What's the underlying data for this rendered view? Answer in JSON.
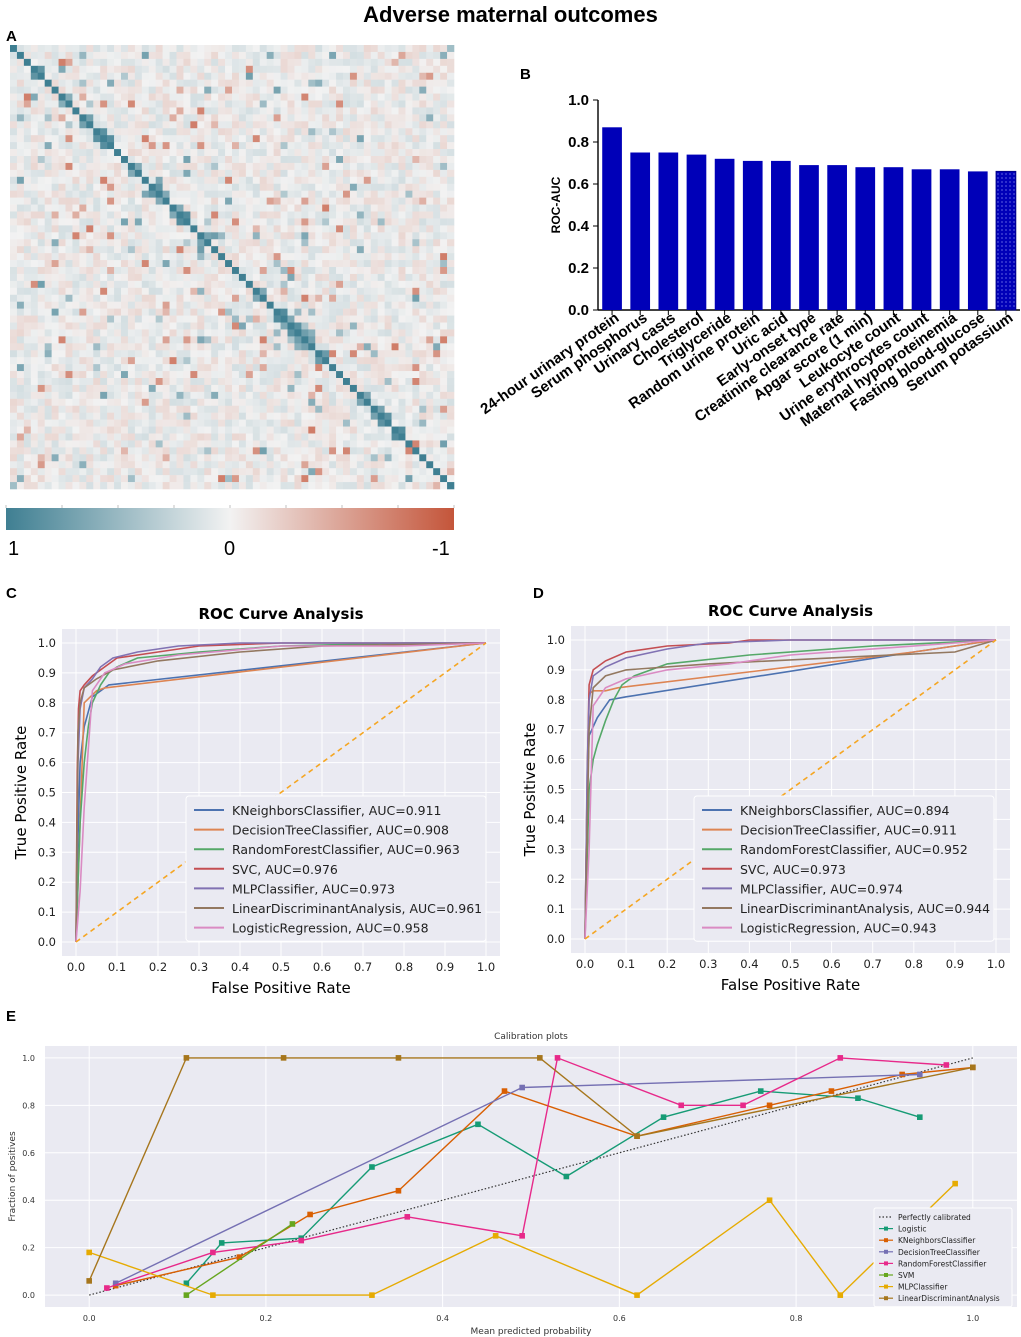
{
  "title": "Adverse maternal outcomes",
  "panel_letters": {
    "a": "A",
    "b": "B",
    "c": "C",
    "d": "D",
    "e": "E"
  },
  "chart_data": [
    {
      "panel": "A",
      "type": "heatmap",
      "description_free": true,
      "colorbar": {
        "min_label": "1",
        "mid_label": "0",
        "max_label": "-1",
        "low_color": "#3f7f92",
        "mid_color": "#f2f2f2",
        "high_color": "#c4553a"
      },
      "matrix_size": 64,
      "diagonal_value": 1
    },
    {
      "panel": "B",
      "type": "bar",
      "title": "",
      "ylabel": "ROC-AUC",
      "ylim": [
        0.0,
        1.0
      ],
      "yticks": [
        "0.0",
        "0.2",
        "0.4",
        "0.6",
        "0.8",
        "1.0"
      ],
      "bar_color": "#0000b8",
      "categories": [
        "24-hour urinary protein",
        "Serum phosphorus",
        "Urinary casts",
        "Cholesterol",
        "Triglyceride",
        "Random urine protein",
        "Uric acid",
        "Early-onset type",
        "Creatinine clearance rate",
        "Apgar score (1 min)",
        "Leukocyte count",
        "Urine erythrocytes count",
        "Maternal hypoproteinemia",
        "Fasting blood-glucose",
        "Serum potassium"
      ],
      "values": [
        0.87,
        0.75,
        0.75,
        0.74,
        0.72,
        0.71,
        0.71,
        0.69,
        0.69,
        0.68,
        0.68,
        0.67,
        0.67,
        0.66,
        0.66
      ]
    },
    {
      "panel": "C",
      "type": "line",
      "title": "ROC Curve Analysis",
      "xlabel": "False Positive Rate",
      "ylabel": "True Positive Rate",
      "xlim": [
        0,
        1
      ],
      "ylim": [
        0,
        1
      ],
      "ticks": [
        "0.0",
        "0.1",
        "0.2",
        "0.3",
        "0.4",
        "0.5",
        "0.6",
        "0.7",
        "0.8",
        "0.9",
        "1.0"
      ],
      "series": [
        {
          "name": "KNeighborsClassifier, AUC=0.911",
          "color": "#4c72b0",
          "x": [
            0,
            0.005,
            0.01,
            0.02,
            0.04,
            0.08,
            1.0
          ],
          "y": [
            0,
            0.35,
            0.6,
            0.72,
            0.82,
            0.86,
            1.0
          ]
        },
        {
          "name": "DecisionTreeClassifier, AUC=0.908",
          "color": "#dd8452",
          "x": [
            0,
            0.02,
            0.05,
            0.07,
            1.0
          ],
          "y": [
            0,
            0.8,
            0.84,
            0.85,
            1.0
          ]
        },
        {
          "name": "RandomForestClassifier, AUC=0.963",
          "color": "#55a868",
          "x": [
            0,
            0.01,
            0.02,
            0.03,
            0.04,
            0.06,
            0.08,
            0.1,
            0.15,
            0.3,
            0.5,
            0.8,
            1.0
          ],
          "y": [
            0,
            0.4,
            0.6,
            0.72,
            0.8,
            0.86,
            0.9,
            0.92,
            0.95,
            0.97,
            0.99,
            1.0,
            1.0
          ]
        },
        {
          "name": "SVC, AUC=0.976",
          "color": "#c44e52",
          "x": [
            0,
            0.003,
            0.006,
            0.01,
            0.02,
            0.04,
            0.07,
            0.1,
            0.2,
            0.3,
            0.5,
            1.0
          ],
          "y": [
            0,
            0.57,
            0.78,
            0.84,
            0.86,
            0.89,
            0.92,
            0.95,
            0.97,
            0.99,
            1.0,
            1.0
          ]
        },
        {
          "name": "MLPClassifier, AUC=0.973",
          "color": "#8172b3",
          "x": [
            0,
            0.005,
            0.01,
            0.02,
            0.04,
            0.06,
            0.09,
            0.15,
            0.25,
            0.4,
            1.0
          ],
          "y": [
            0,
            0.6,
            0.78,
            0.85,
            0.88,
            0.92,
            0.95,
            0.97,
            0.99,
            1.0,
            1.0
          ]
        },
        {
          "name": "LinearDiscriminantAnalysis, AUC=0.961",
          "color": "#937860",
          "x": [
            0,
            0.005,
            0.01,
            0.02,
            0.05,
            0.09,
            0.2,
            0.4,
            0.6,
            1.0
          ],
          "y": [
            0,
            0.7,
            0.8,
            0.85,
            0.88,
            0.91,
            0.94,
            0.97,
            0.99,
            1.0
          ]
        },
        {
          "name": "LogisticRegression, AUC=0.958",
          "color": "#da8bc3",
          "x": [
            0,
            0.01,
            0.02,
            0.04,
            0.07,
            0.12,
            0.25,
            0.5,
            0.8,
            1.0
          ],
          "y": [
            0,
            0.17,
            0.45,
            0.84,
            0.9,
            0.93,
            0.96,
            0.99,
            0.99,
            1.0
          ]
        },
        {
          "name": "chance",
          "color": "#f5a623",
          "dashed": true,
          "x": [
            0,
            1
          ],
          "y": [
            0,
            1
          ]
        }
      ]
    },
    {
      "panel": "D",
      "type": "line",
      "title": "ROC Curve Analysis",
      "xlabel": "False Positive Rate",
      "ylabel": "True Positive Rate",
      "xlim": [
        0,
        1
      ],
      "ylim": [
        0,
        1
      ],
      "ticks": [
        "0.0",
        "0.1",
        "0.2",
        "0.3",
        "0.4",
        "0.5",
        "0.6",
        "0.7",
        "0.8",
        "0.9",
        "1.0"
      ],
      "series": [
        {
          "name": "KNeighborsClassifier, AUC=0.894",
          "color": "#4c72b0",
          "x": [
            0,
            0.005,
            0.01,
            0.03,
            0.06,
            0.1,
            0.8,
            1.0
          ],
          "y": [
            0,
            0.48,
            0.68,
            0.74,
            0.8,
            0.81,
            0.96,
            1.0
          ]
        },
        {
          "name": "DecisionTreeClassifier, AUC=0.911",
          "color": "#dd8452",
          "x": [
            0,
            0.01,
            0.02,
            0.05,
            0.08,
            0.8,
            1.0
          ],
          "y": [
            0,
            0.82,
            0.83,
            0.83,
            0.84,
            0.96,
            1.0
          ]
        },
        {
          "name": "RandomForestClassifier, AUC=0.952",
          "color": "#55a868",
          "x": [
            0,
            0.01,
            0.02,
            0.03,
            0.05,
            0.07,
            0.09,
            0.12,
            0.2,
            0.4,
            0.7,
            1.0
          ],
          "y": [
            0,
            0.5,
            0.6,
            0.65,
            0.73,
            0.8,
            0.85,
            0.88,
            0.92,
            0.95,
            0.98,
            1.0
          ]
        },
        {
          "name": "SVC, AUC=0.973",
          "color": "#c44e52",
          "x": [
            0,
            0.003,
            0.006,
            0.01,
            0.02,
            0.05,
            0.1,
            0.2,
            0.35,
            0.4,
            1.0
          ],
          "y": [
            0,
            0.3,
            0.6,
            0.85,
            0.9,
            0.93,
            0.96,
            0.98,
            0.99,
            1.0,
            1.0
          ]
        },
        {
          "name": "MLPClassifier, AUC=0.974",
          "color": "#8172b3",
          "x": [
            0,
            0.005,
            0.01,
            0.02,
            0.05,
            0.1,
            0.2,
            0.3,
            0.5,
            1.0
          ],
          "y": [
            0,
            0.55,
            0.8,
            0.88,
            0.91,
            0.94,
            0.97,
            0.99,
            1.0,
            1.0
          ]
        },
        {
          "name": "LinearDiscriminantAnalysis, AUC=0.944",
          "color": "#937860",
          "x": [
            0,
            0.01,
            0.02,
            0.05,
            0.1,
            0.3,
            0.6,
            0.9,
            1.0
          ],
          "y": [
            0,
            0.7,
            0.84,
            0.88,
            0.9,
            0.92,
            0.94,
            0.96,
            1.0
          ]
        },
        {
          "name": "LogisticRegression, AUC=0.943",
          "color": "#da8bc3",
          "x": [
            0,
            0.01,
            0.02,
            0.05,
            0.1,
            0.2,
            0.35,
            0.5,
            0.9,
            1.0
          ],
          "y": [
            0,
            0.3,
            0.78,
            0.84,
            0.87,
            0.9,
            0.92,
            0.95,
            0.99,
            1.0
          ]
        },
        {
          "name": "chance",
          "color": "#f5a623",
          "dashed": true,
          "x": [
            0,
            1
          ],
          "y": [
            0,
            1
          ]
        }
      ]
    },
    {
      "panel": "E",
      "type": "line",
      "title": "Calibration plots",
      "xlabel": "Mean predicted probability",
      "ylabel": "Fraction of positives",
      "xlim": [
        -0.05,
        1.05
      ],
      "ylim": [
        -0.05,
        1.05
      ],
      "xticks": [
        "0.0",
        "0.2",
        "0.4",
        "0.6",
        "0.8",
        "1.0"
      ],
      "yticks": [
        "0.0",
        "0.2",
        "0.4",
        "0.6",
        "0.8",
        "1.0"
      ],
      "series": [
        {
          "name": "Perfectly calibrated",
          "color": "#333333",
          "dotted": true,
          "x": [
            0,
            1
          ],
          "y": [
            0,
            1
          ]
        },
        {
          "name": "Logistic",
          "color": "#169b75",
          "x": [
            0.11,
            0.15,
            0.24,
            0.32,
            0.44,
            0.54,
            0.65,
            0.76,
            0.87,
            0.94
          ],
          "y": [
            0.05,
            0.22,
            0.24,
            0.54,
            0.72,
            0.5,
            0.75,
            0.86,
            0.83,
            0.75
          ]
        },
        {
          "name": "KNeighborsClassifier",
          "color": "#d95f02",
          "x": [
            0.03,
            0.17,
            0.25,
            0.35,
            0.47,
            0.62,
            0.77,
            0.84,
            0.92,
            1.0
          ],
          "y": [
            0.04,
            0.16,
            0.34,
            0.44,
            0.86,
            0.67,
            0.8,
            0.86,
            0.93,
            0.96
          ]
        },
        {
          "name": "DecisionTreeClassifier",
          "color": "#7570b3",
          "x": [
            0.03,
            0.49,
            0.94
          ],
          "y": [
            0.05,
            0.875,
            0.93
          ]
        },
        {
          "name": "RandomForestClassifier",
          "color": "#e7298a",
          "x": [
            0.02,
            0.14,
            0.24,
            0.36,
            0.49,
            0.53,
            0.67,
            0.74,
            0.85,
            0.97
          ],
          "y": [
            0.03,
            0.18,
            0.23,
            0.33,
            0.25,
            1.0,
            0.8,
            0.8,
            1.0,
            0.97
          ]
        },
        {
          "name": "SVM",
          "color": "#66a61e",
          "x": [
            0.11,
            0.23
          ],
          "y": [
            0.0,
            0.3
          ]
        },
        {
          "name": "MLPClassifier",
          "color": "#e6ab02",
          "x": [
            0.0,
            0.14,
            0.32,
            0.46,
            0.62,
            0.77,
            0.85,
            0.98
          ],
          "y": [
            0.18,
            0.0,
            0.0,
            0.25,
            0.0,
            0.4,
            0.0,
            0.47
          ]
        },
        {
          "name": "LinearDiscriminantAnalysis",
          "color": "#a6761d",
          "x": [
            0.0,
            0.11,
            0.22,
            0.35,
            0.51,
            0.62,
            1.0
          ],
          "y": [
            0.06,
            1.0,
            1.0,
            1.0,
            1.0,
            0.67,
            0.96
          ]
        }
      ]
    }
  ]
}
